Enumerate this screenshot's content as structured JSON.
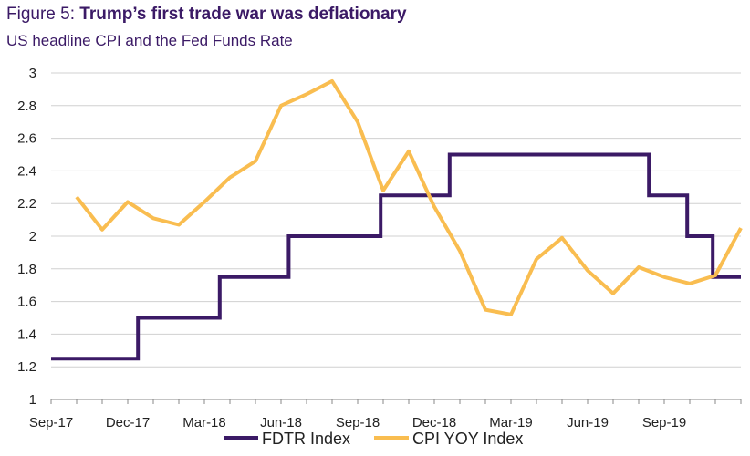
{
  "header": {
    "figure_label": "Figure 5: ",
    "title": "Trump’s first trade war was deflationary",
    "subtitle": "US headline CPI and the Fed Funds Rate"
  },
  "chart_data": {
    "type": "line",
    "title": "Trump’s first trade war was deflationary",
    "subtitle": "US headline CPI and the Fed Funds Rate",
    "xlabel": "",
    "ylabel": "",
    "ylim": [
      1,
      3
    ],
    "yticks": [
      1,
      1.2,
      1.4,
      1.6,
      1.8,
      2,
      2.2,
      2.4,
      2.6,
      2.8,
      3
    ],
    "ytick_labels": [
      "1",
      "1.2",
      "1.4",
      "1.6",
      "1.8",
      "2",
      "2.2",
      "2.4",
      "2.6",
      "2.8",
      "3"
    ],
    "x_tick_labels": [
      "Sep-17",
      "Dec-17",
      "Mar-18",
      "Jun-18",
      "Sep-18",
      "Dec-18",
      "Mar-19",
      "Jun-19",
      "Sep-19"
    ],
    "x_tick_month_index": [
      0,
      3,
      6,
      9,
      12,
      15,
      18,
      21,
      24
    ],
    "x_range_months": [
      0,
      27
    ],
    "grid": true,
    "legend_position": "bottom-center",
    "colors": {
      "fdtr": "#3b1a66",
      "cpi": "#f9bd50",
      "grid": "#d0d0d0",
      "axis": "#888888",
      "title": "#3b1a66"
    },
    "series": [
      {
        "name": "FDTR Index",
        "kind": "step",
        "points": [
          [
            0,
            1.25
          ],
          [
            3.4,
            1.25
          ],
          [
            3.4,
            1.5
          ],
          [
            6.6,
            1.5
          ],
          [
            6.6,
            1.75
          ],
          [
            9.3,
            1.75
          ],
          [
            9.3,
            2.0
          ],
          [
            12.9,
            2.0
          ],
          [
            12.9,
            2.25
          ],
          [
            15.6,
            2.25
          ],
          [
            15.6,
            2.5
          ],
          [
            23.4,
            2.5
          ],
          [
            23.4,
            2.25
          ],
          [
            24.9,
            2.25
          ],
          [
            24.9,
            2.0
          ],
          [
            25.9,
            2.0
          ],
          [
            25.9,
            1.75
          ],
          [
            27,
            1.75
          ]
        ]
      },
      {
        "name": "CPI YOY Index",
        "kind": "line",
        "points": [
          [
            1,
            2.24
          ],
          [
            2,
            2.04
          ],
          [
            3,
            2.21
          ],
          [
            4,
            2.11
          ],
          [
            5,
            2.07
          ],
          [
            6,
            2.21
          ],
          [
            7,
            2.36
          ],
          [
            8,
            2.46
          ],
          [
            9,
            2.8
          ],
          [
            10,
            2.87
          ],
          [
            11,
            2.95
          ],
          [
            12,
            2.7
          ],
          [
            13,
            2.28
          ],
          [
            14,
            2.52
          ],
          [
            15,
            2.18
          ],
          [
            16,
            1.91
          ],
          [
            17,
            1.55
          ],
          [
            18,
            1.52
          ],
          [
            19,
            1.86
          ],
          [
            20,
            1.99
          ],
          [
            21,
            1.79
          ],
          [
            22,
            1.65
          ],
          [
            23,
            1.81
          ],
          [
            24,
            1.75
          ],
          [
            25,
            1.71
          ],
          [
            26,
            1.76
          ],
          [
            27,
            2.05
          ]
        ]
      }
    ]
  }
}
